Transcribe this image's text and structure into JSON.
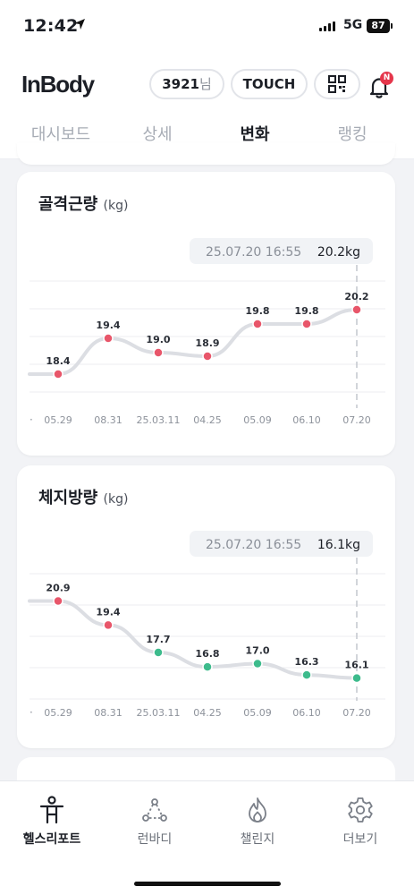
{
  "status_bar": {
    "time": "12:42",
    "network": "5G",
    "battery": "87"
  },
  "header": {
    "logo": "InBody",
    "user_id": "3921",
    "user_suffix": "님",
    "touch_label": "TOUCH",
    "notification_badge": "N"
  },
  "tabs": [
    {
      "label": "대시보드",
      "active": false
    },
    {
      "label": "상세",
      "active": false
    },
    {
      "label": "변화",
      "active": true
    },
    {
      "label": "랭킹",
      "active": false
    }
  ],
  "chart_data": [
    {
      "type": "line",
      "title": "골격근량",
      "unit": "(kg)",
      "categories": [
        "05.29",
        "08.31",
        "25.03.11",
        "04.25",
        "05.09",
        "06.10",
        "07.20"
      ],
      "values": [
        18.4,
        19.4,
        19.0,
        18.9,
        19.8,
        19.8,
        20.2
      ],
      "value_labels": [
        "18.4",
        "19.4",
        "19.0",
        "18.9",
        "19.8",
        "19.8",
        "20.2"
      ],
      "ylim": [
        17.5,
        21.0
      ],
      "point_color": "#e8566a",
      "line_color": "#dcdee3",
      "grid": true,
      "tooltip": {
        "date": "25.07.20 16:55",
        "value": "20.2kg"
      }
    },
    {
      "type": "line",
      "title": "체지방량",
      "unit": "(kg)",
      "categories": [
        "05.29",
        "08.31",
        "25.03.11",
        "04.25",
        "05.09",
        "06.10",
        "07.20"
      ],
      "values": [
        20.9,
        19.4,
        17.7,
        16.8,
        17.0,
        16.3,
        16.1
      ],
      "value_labels": [
        "20.9",
        "19.4",
        "17.7",
        "16.8",
        "17.0",
        "16.3",
        "16.1"
      ],
      "ylim": [
        14.8,
        22.6
      ],
      "point_colors": [
        "#e8566a",
        "#e8566a",
        "#3dbb8c",
        "#3dbb8c",
        "#3dbb8c",
        "#3dbb8c",
        "#3dbb8c"
      ],
      "line_color": "#dcdee3",
      "grid": true,
      "tooltip": {
        "date": "25.07.20 16:55",
        "value": "16.1kg"
      }
    }
  ],
  "bottom_nav": [
    {
      "label": "헬스리포트",
      "icon": "body-report-icon",
      "active": true
    },
    {
      "label": "런바디",
      "icon": "runbody-icon",
      "active": false
    },
    {
      "label": "챌린지",
      "icon": "flame-icon",
      "active": false
    },
    {
      "label": "더보기",
      "icon": "gear-icon",
      "active": false
    }
  ]
}
